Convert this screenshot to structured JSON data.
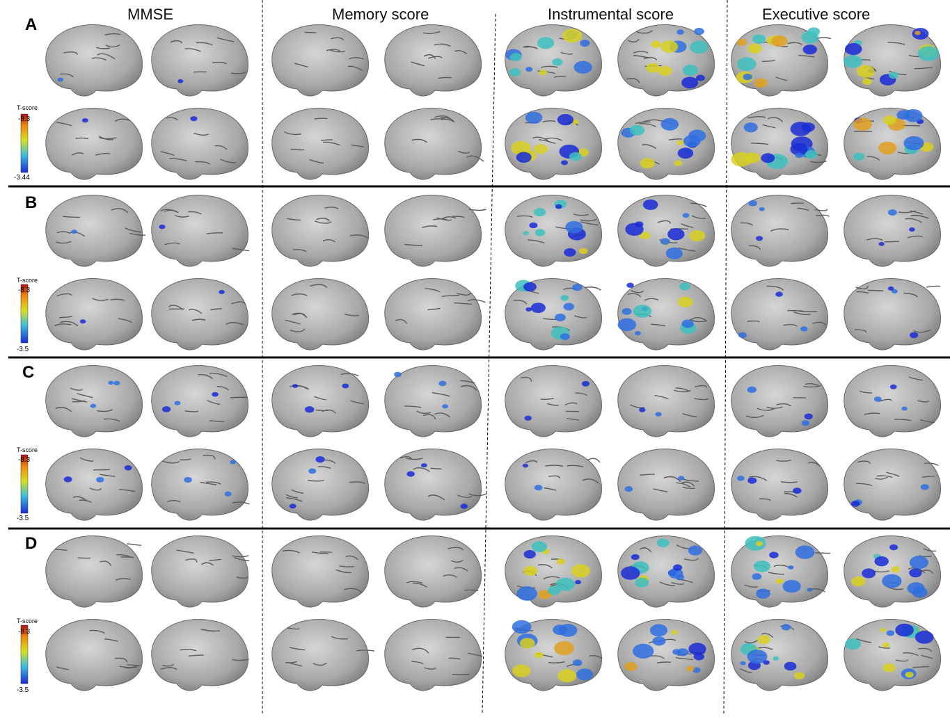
{
  "columns": [
    "MMSE",
    "Memory score",
    "Instrumental score",
    "Executive score"
  ],
  "rows": [
    {
      "label": "A",
      "colorbar": {
        "title": "T-score",
        "max": "-8.3",
        "min": "-3.44"
      },
      "activation": [
        0.08,
        0.0,
        0.75,
        0.85
      ]
    },
    {
      "label": "B",
      "colorbar": {
        "title": "T-score",
        "max": "-8.3",
        "min": "-3.5"
      },
      "activation": [
        0.05,
        0.0,
        0.7,
        0.18
      ]
    },
    {
      "label": "C",
      "colorbar": {
        "title": "T-score",
        "max": "-8.3",
        "min": "-3.5"
      },
      "activation": [
        0.2,
        0.2,
        0.15,
        0.2
      ]
    },
    {
      "label": "D",
      "colorbar": {
        "title": "T-score",
        "max": "-8.3",
        "min": "-3.5"
      },
      "activation": [
        0.02,
        0.0,
        0.8,
        0.8
      ]
    }
  ],
  "colors": {
    "brain": "#a9a9a9",
    "brain_shade": "#8a8a8a",
    "low": "#1a2bd6",
    "mid": "#3fbfc0",
    "high": "#d8d020",
    "peak": "#c0201a"
  }
}
